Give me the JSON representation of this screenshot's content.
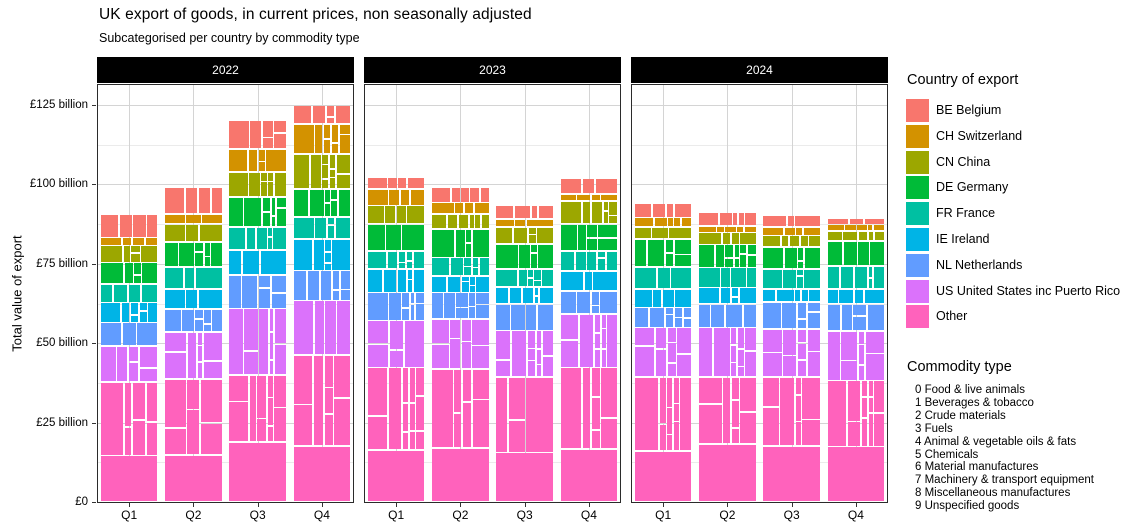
{
  "title": "UK export of goods, in current prices, non seasonally adjusted",
  "subtitle": "Subcategorised per country by commodity type",
  "y_axis": {
    "title": "Total value of export",
    "tick_labels": [
      "£0",
      "£25 billion",
      "£50 billion",
      "£75 billion",
      "£100 billion",
      "£125 billion"
    ],
    "tick_values": [
      0,
      25,
      50,
      75,
      100,
      125
    ]
  },
  "x_axis": {
    "tick_labels": [
      "Q1",
      "Q2",
      "Q3",
      "Q4"
    ]
  },
  "facets": [
    "2022",
    "2023",
    "2024"
  ],
  "legend": {
    "title": "Country of export",
    "entries": [
      {
        "label": "BE Belgium",
        "color": "#F8766D"
      },
      {
        "label": "CH Switzerland",
        "color": "#D39200"
      },
      {
        "label": "CN China",
        "color": "#9CA700"
      },
      {
        "label": "DE Germany",
        "color": "#00BB38"
      },
      {
        "label": "FR France",
        "color": "#00C0A2"
      },
      {
        "label": "IE Ireland",
        "color": "#00B4E6"
      },
      {
        "label": "NL Netherlands",
        "color": "#619CFF"
      },
      {
        "label": "US United States inc Puerto Rico",
        "color": "#DB72FB"
      },
      {
        "label": "Other",
        "color": "#FF62BC"
      }
    ]
  },
  "commodity_legend": {
    "title": "Commodity type",
    "items": [
      "0 Food & live animals",
      "1 Beverages & tobacco",
      "2 Crude materials",
      "3 Fuels",
      "4 Animal & vegetable oils & fats",
      "5 Chemicals",
      "6 Material manufactures",
      "7 Machinery & transport equipment",
      "8 Miscellaneous manufactures",
      "9 Unspecified goods"
    ]
  },
  "chart_data": {
    "type": "bar",
    "variant": "mosaic-stacked-bar",
    "unit": "£ billion",
    "title": "UK export of goods, in current prices, non seasonally adjusted",
    "xlabel": "",
    "ylabel": "Total value of export",
    "ylim": [
      0,
      131
    ],
    "grid": "on",
    "legend_position": "right",
    "facets": [
      "2022",
      "2023",
      "2024"
    ],
    "quarters": [
      "Q1",
      "Q2",
      "Q3",
      "Q4"
    ],
    "stack_order_top_to_bottom": [
      "BE Belgium",
      "CH Switzerland",
      "CN China",
      "DE Germany",
      "FR France",
      "IE Ireland",
      "NL Netherlands",
      "US United States inc Puerto Rico",
      "Other"
    ],
    "series": [
      {
        "name": "BE Belgium",
        "color": "#F8766D",
        "values": {
          "2022": [
            7.4,
            8.4,
            9.1,
            5.8
          ],
          "2023": [
            3.9,
            4.7,
            4.4,
            4.9
          ],
          "2024": [
            4.4,
            4.4,
            3.7,
            2.1
          ]
        }
      },
      {
        "name": "CH Switzerland",
        "color": "#D39200",
        "values": {
          "2022": [
            2.6,
            3.1,
            7.3,
            9.4
          ],
          "2023": [
            5.2,
            3.7,
            2.6,
            2.1
          ],
          "2024": [
            3.1,
            2.1,
            2.6,
            2.1
          ]
        }
      },
      {
        "name": "CN China",
        "color": "#9CA700",
        "values": {
          "2022": [
            5.3,
            5.8,
            7.9,
            11.0
          ],
          "2023": [
            5.8,
            4.7,
            5.2,
            7.3
          ],
          "2024": [
            3.7,
            3.7,
            3.7,
            3.1
          ]
        }
      },
      {
        "name": "DE Germany",
        "color": "#00BB38",
        "values": {
          "2022": [
            6.8,
            7.9,
            9.4,
            8.9
          ],
          "2023": [
            8.4,
            8.9,
            7.9,
            8.4
          ],
          "2024": [
            8.9,
            7.3,
            6.8,
            7.9
          ]
        }
      },
      {
        "name": "FR France",
        "color": "#00C0A2",
        "values": {
          "2022": [
            5.8,
            6.8,
            7.3,
            6.8
          ],
          "2023": [
            5.8,
            5.8,
            5.8,
            6.3
          ],
          "2024": [
            6.8,
            6.3,
            6.3,
            7.3
          ]
        }
      },
      {
        "name": "IE Ireland",
        "color": "#00B4E6",
        "values": {
          "2022": [
            6.3,
            6.3,
            7.9,
            10.0
          ],
          "2023": [
            7.3,
            5.2,
            5.2,
            6.3
          ],
          "2024": [
            5.8,
            5.2,
            4.2,
            4.7
          ]
        }
      },
      {
        "name": "NL Netherlands",
        "color": "#619CFF",
        "values": {
          "2022": [
            7.3,
            7.3,
            10.5,
            9.4
          ],
          "2023": [
            8.9,
            8.4,
            8.4,
            7.3
          ],
          "2024": [
            6.3,
            7.3,
            8.4,
            8.4
          ]
        }
      },
      {
        "name": "US United States inc Puerto Rico",
        "color": "#DB72FB",
        "values": {
          "2022": [
            11.5,
            14.7,
            20.9,
            17.3
          ],
          "2023": [
            14.7,
            15.7,
            14.7,
            16.8
          ],
          "2024": [
            15.7,
            15.7,
            15.2,
            15.7
          ]
        }
      },
      {
        "name": "Other",
        "color": "#FF62BC",
        "values": {
          "2022": [
            37.7,
            38.8,
            40.0,
            46.2
          ],
          "2023": [
            42.4,
            41.9,
            39.3,
            42.4
          ],
          "2024": [
            39.3,
            39.3,
            39.3,
            38.2
          ]
        }
      }
    ],
    "totals": {
      "2022": [
        90.7,
        99.1,
        120.3,
        124.8
      ],
      "2023": [
        102.4,
        99.0,
        93.5,
        101.8
      ],
      "2024": [
        94.0,
        91.3,
        90.2,
        89.5
      ]
    }
  }
}
